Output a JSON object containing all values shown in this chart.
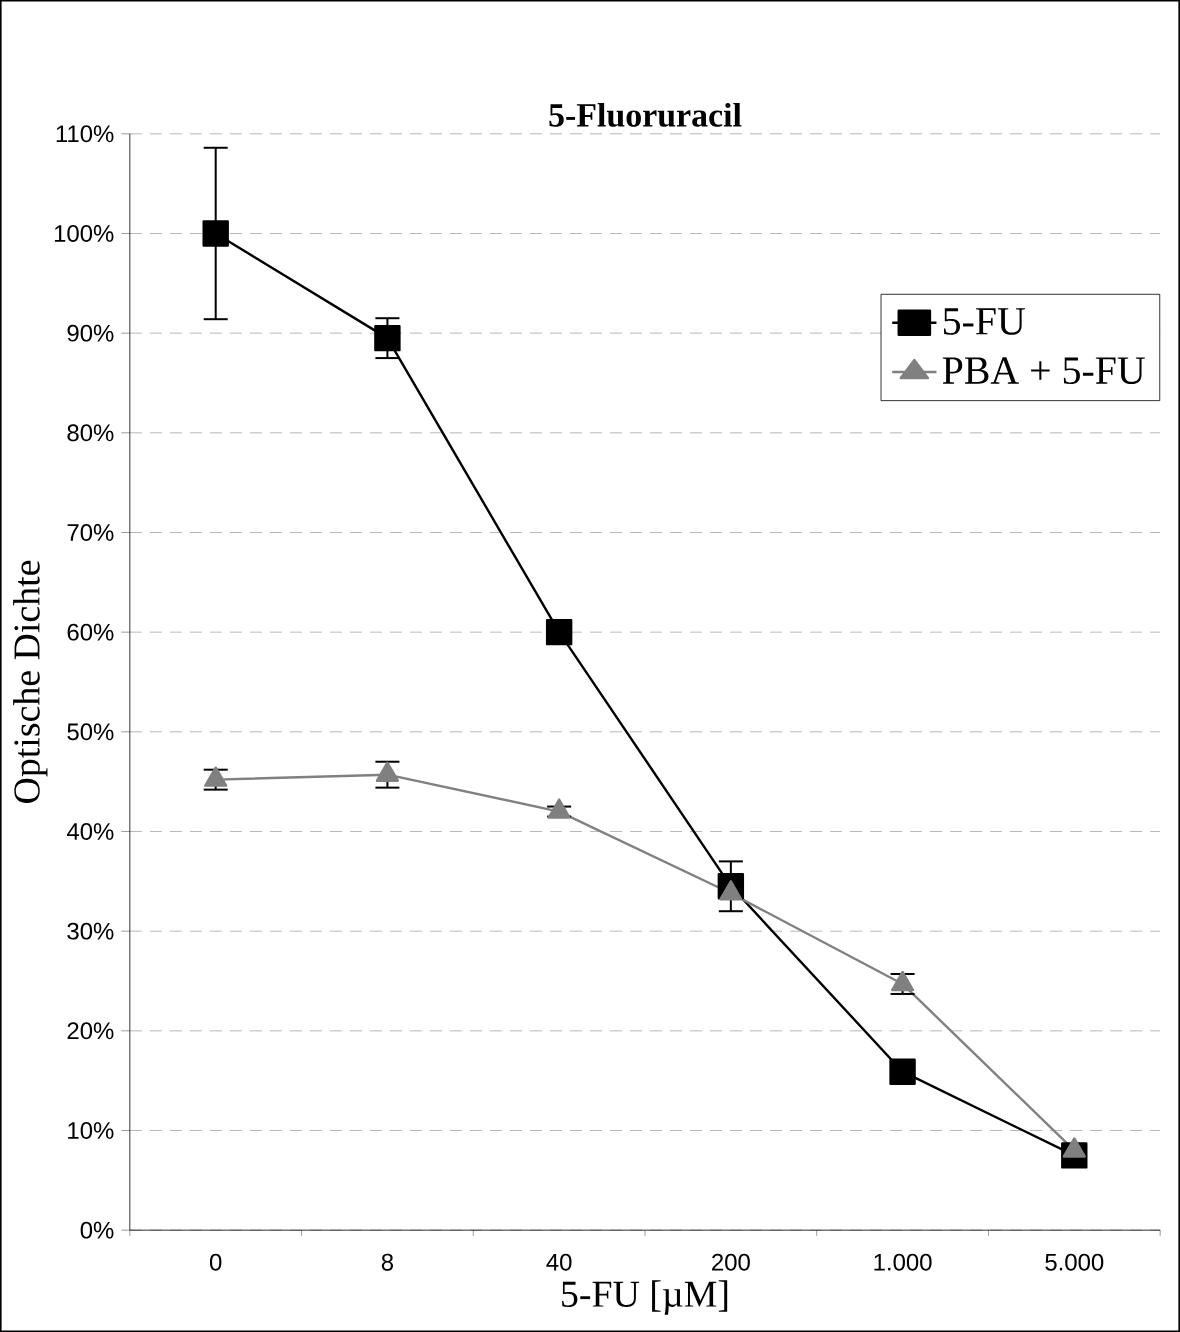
{
  "chart_data": {
    "type": "line",
    "title": "5-Fluoruracil",
    "xlabel": "5-FU [µM]",
    "ylabel": "Optische Dichte",
    "categories": [
      "0",
      "8",
      "40",
      "200",
      "1.000",
      "5.000"
    ],
    "series": [
      {
        "name": "5-FU",
        "color": "#000000",
        "marker": "square",
        "values": [
          100,
          89.5,
          60,
          34.5,
          15.9,
          7.5
        ],
        "errors": [
          8.6,
          2,
          null,
          2.5,
          null,
          1
        ]
      },
      {
        "name": "PBA + 5-FU",
        "color": "#808080",
        "marker": "triangle",
        "values": [
          45.2,
          45.7,
          42,
          33.8,
          24.7,
          8
        ],
        "errors": [
          1,
          1.3,
          0.5,
          null,
          1,
          null
        ]
      }
    ],
    "ylim": [
      0,
      110
    ],
    "yticks": [
      {
        "value": 0,
        "label": "0%"
      },
      {
        "value": 10,
        "label": "10%"
      },
      {
        "value": 20,
        "label": "20%"
      },
      {
        "value": 30,
        "label": "30%"
      },
      {
        "value": 40,
        "label": "40%"
      },
      {
        "value": 50,
        "label": "50%"
      },
      {
        "value": 60,
        "label": "60%"
      },
      {
        "value": 70,
        "label": "70%"
      },
      {
        "value": 80,
        "label": "80%"
      },
      {
        "value": 90,
        "label": "90%"
      },
      {
        "value": 100,
        "label": "100%"
      },
      {
        "value": 110,
        "label": "110%"
      }
    ],
    "grid": "y",
    "legend": "top right",
    "line_style": "solid"
  }
}
